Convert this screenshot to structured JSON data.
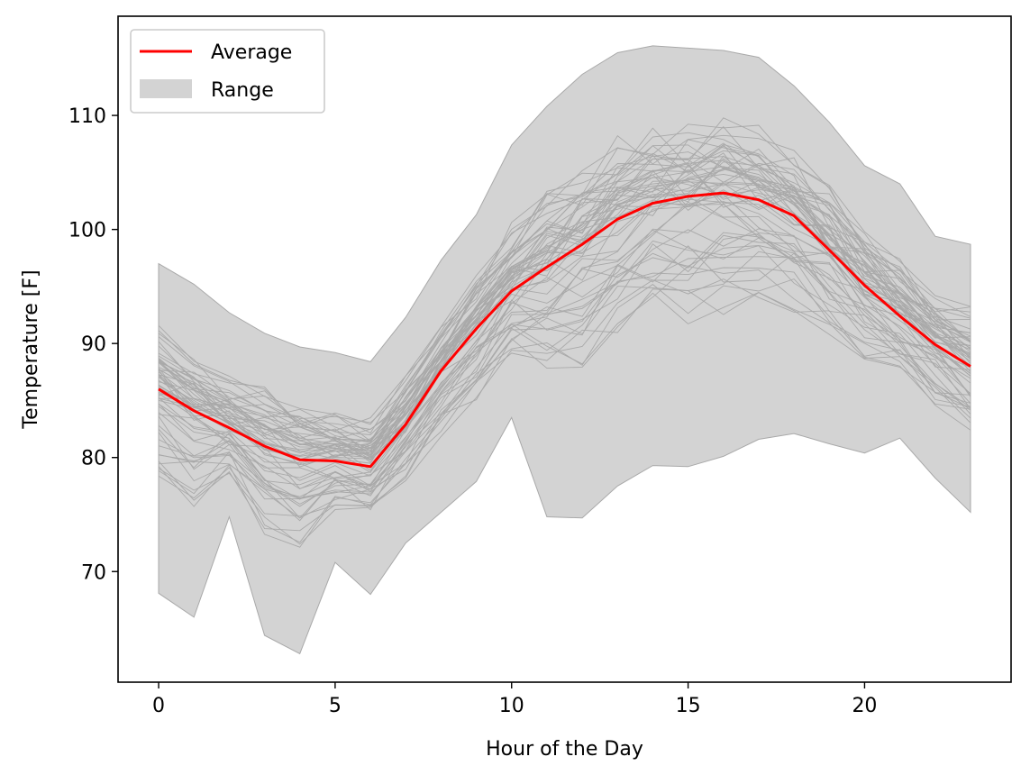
{
  "chart_data": {
    "type": "line",
    "title": "",
    "xlabel": "Hour of the Day",
    "ylabel": "Temperature [F]",
    "xlim": [
      -1.15,
      24.15
    ],
    "ylim": [
      60.3,
      118.7
    ],
    "xticks": [
      0,
      5,
      10,
      15,
      20
    ],
    "yticks": [
      70,
      80,
      90,
      100,
      110
    ],
    "grid": false,
    "legend_position": "top-left",
    "legend": [
      {
        "label": "Average",
        "kind": "line",
        "color": "#ff0000"
      },
      {
        "label": "Range",
        "kind": "patch",
        "color": "#d3d3d3"
      }
    ],
    "x": [
      0,
      1,
      2,
      3,
      4,
      5,
      6,
      7,
      8,
      9,
      10,
      11,
      12,
      13,
      14,
      15,
      16,
      17,
      18,
      19,
      20,
      21,
      22,
      23
    ],
    "average": [
      86.0,
      84.1,
      82.6,
      81.0,
      79.8,
      79.7,
      79.2,
      82.9,
      87.6,
      91.3,
      94.6,
      96.7,
      98.7,
      100.9,
      102.3,
      102.9,
      103.2,
      102.6,
      101.2,
      98.2,
      95.1,
      92.4,
      89.9,
      88.0
    ],
    "range_min": [
      68.1,
      66.0,
      74.8,
      64.4,
      62.8,
      70.8,
      68.0,
      72.5,
      75.2,
      77.9,
      83.5,
      74.8,
      74.7,
      77.5,
      79.3,
      79.2,
      80.1,
      81.6,
      82.1,
      81.2,
      80.4,
      81.7,
      78.2,
      75.2
    ],
    "range_max": [
      97.0,
      95.2,
      92.7,
      90.9,
      89.7,
      89.2,
      88.4,
      92.3,
      97.3,
      101.3,
      107.4,
      110.8,
      113.6,
      115.5,
      116.1,
      115.9,
      115.7,
      115.1,
      112.6,
      109.4,
      105.6,
      104.0,
      99.4,
      98.7
    ],
    "individual_days_shown": 60,
    "colors": {
      "average_line": "#ff0000",
      "range_fill": "#d3d3d3",
      "individual_lines": "#a9a9a9"
    }
  }
}
